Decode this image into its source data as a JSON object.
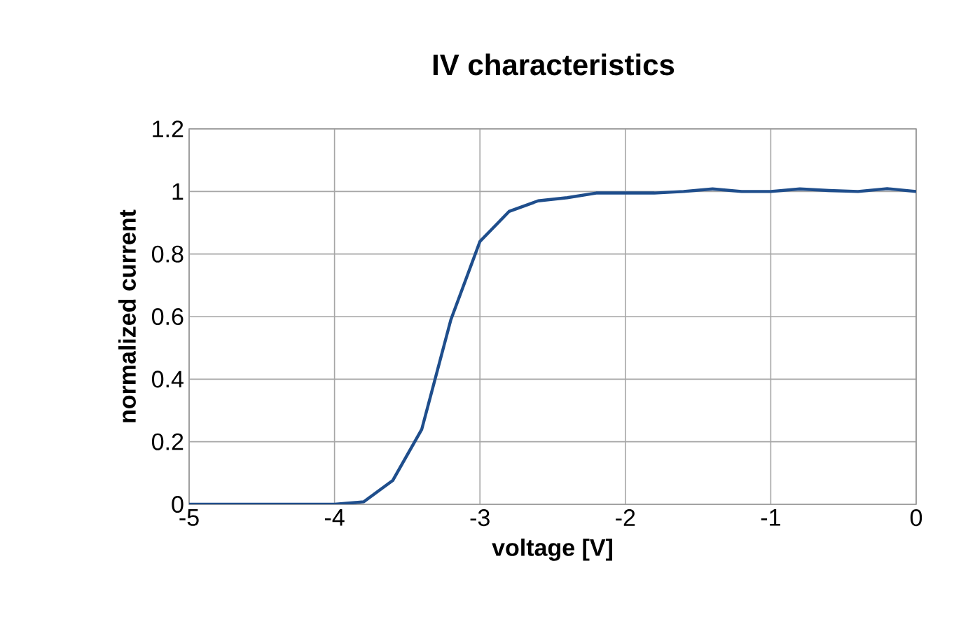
{
  "chart_data": {
    "type": "line",
    "title": "IV characteristics",
    "xlabel": "voltage [V]",
    "ylabel": "normalized current",
    "x": [
      -5,
      -4.8,
      -4.6,
      -4.4,
      -4.2,
      -4,
      -3.8,
      -3.6,
      -3.4,
      -3.2,
      -3,
      -2.8,
      -2.6,
      -2.4,
      -2.2,
      -2,
      -1.8,
      -1.6,
      -1.4,
      -1.2,
      -1,
      -0.8,
      -0.6,
      -0.4,
      -0.2,
      0
    ],
    "series": [
      {
        "color": "#1f4e8c",
        "values": [
          0,
          0,
          0,
          0,
          0,
          0,
          0.008,
          0.076,
          0.24,
          0.59,
          0.84,
          0.936,
          0.97,
          0.98,
          0.995,
          0.995,
          0.995,
          1.0,
          1.008,
          1.0,
          1.0,
          1.008,
          1.003,
          1.0,
          1.009,
          1.0
        ]
      }
    ],
    "xlim": [
      -5,
      0
    ],
    "ylim": [
      0,
      1.2
    ],
    "xticks": [
      -5,
      -4,
      -3,
      -2,
      -1,
      0
    ],
    "yticks": [
      0,
      0.2,
      0.4,
      0.6,
      0.8,
      1,
      1.2
    ],
    "grid": true,
    "marker": "none",
    "line_style": "solid"
  }
}
